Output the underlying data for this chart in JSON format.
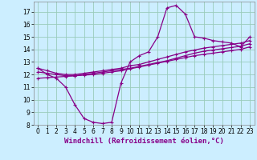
{
  "xlabel": "Windchill (Refroidissement éolien,°C)",
  "x_values": [
    0,
    1,
    2,
    3,
    4,
    5,
    6,
    7,
    8,
    9,
    10,
    11,
    12,
    13,
    14,
    15,
    16,
    17,
    18,
    19,
    20,
    21,
    22,
    23
  ],
  "line1": [
    12.5,
    12.0,
    11.7,
    11.0,
    9.6,
    8.5,
    8.2,
    8.1,
    8.2,
    11.3,
    13.0,
    13.5,
    13.8,
    15.0,
    17.3,
    17.5,
    16.8,
    15.0,
    14.9,
    14.7,
    14.6,
    14.5,
    14.2,
    15.0
  ],
  "line2": [
    12.5,
    12.3,
    12.1,
    12.0,
    12.0,
    12.1,
    12.2,
    12.3,
    12.4,
    12.5,
    12.7,
    12.8,
    13.0,
    13.2,
    13.4,
    13.6,
    13.8,
    13.95,
    14.1,
    14.2,
    14.3,
    14.4,
    14.5,
    14.7
  ],
  "line3": [
    12.2,
    12.1,
    12.0,
    11.9,
    11.9,
    12.0,
    12.1,
    12.2,
    12.3,
    12.4,
    12.5,
    12.65,
    12.8,
    12.95,
    13.1,
    13.3,
    13.5,
    13.7,
    13.85,
    13.95,
    14.05,
    14.15,
    14.25,
    14.45
  ],
  "line4": [
    11.7,
    11.75,
    11.8,
    11.85,
    11.9,
    11.95,
    12.0,
    12.1,
    12.2,
    12.3,
    12.45,
    12.6,
    12.75,
    12.9,
    13.05,
    13.2,
    13.35,
    13.5,
    13.6,
    13.7,
    13.8,
    13.9,
    14.0,
    14.2
  ],
  "line_color": "#880088",
  "bg_color": "#cceeff",
  "grid_color": "#99ccbb",
  "ylim": [
    8,
    17.5
  ],
  "xlim": [
    -0.5,
    23.5
  ],
  "yticks": [
    8,
    9,
    10,
    11,
    12,
    13,
    14,
    15,
    16,
    17
  ],
  "xticks": [
    0,
    1,
    2,
    3,
    4,
    5,
    6,
    7,
    8,
    9,
    10,
    11,
    12,
    13,
    14,
    15,
    16,
    17,
    18,
    19,
    20,
    21,
    22,
    23
  ],
  "marker": "+",
  "markersize": 3,
  "linewidth": 0.9,
  "xlabel_fontsize": 6.5,
  "tick_fontsize": 5.5
}
